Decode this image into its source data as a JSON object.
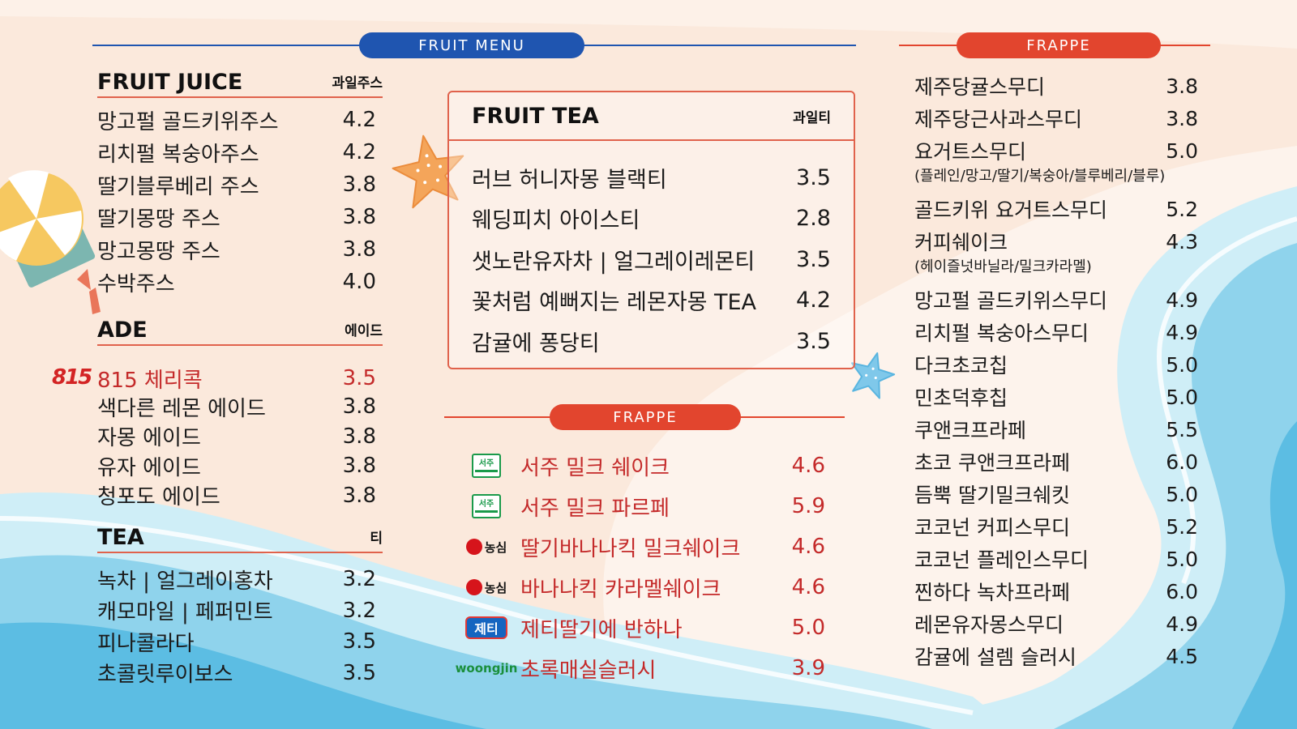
{
  "colors": {
    "blue": "#1f55b0",
    "red": "#e2452e",
    "accent_red_text": "#c42a2a",
    "sea_light": "#bfe6f3",
    "sea_mid": "#7fcbe8",
    "sea_dark": "#52b6e0",
    "sand": "#fbe9dc"
  },
  "banners": {
    "fruit_menu": "FRUIT MENU",
    "frappe_right": "FRAPPE",
    "frappe_center": "FRAPPE"
  },
  "fruit_juice": {
    "title": "FRUIT JUICE",
    "title_ko": "과일주스",
    "items": [
      {
        "name": "망고펄 골드키위주스",
        "price": "4.2"
      },
      {
        "name": "리치펄 복숭아주스",
        "price": "4.2"
      },
      {
        "name": "딸기블루베리 주스",
        "price": "3.8"
      },
      {
        "name": "딸기몽땅 주스",
        "price": "3.8"
      },
      {
        "name": "망고몽땅 주스",
        "price": "3.8"
      },
      {
        "name": "수박주스",
        "price": "4.0"
      }
    ]
  },
  "ade": {
    "title": "ADE",
    "title_ko": "에이드",
    "featured": {
      "logo": "815",
      "name": "815 체리콕",
      "price": "3.5"
    },
    "items": [
      {
        "name": "색다른 레몬 에이드",
        "price": "3.8"
      },
      {
        "name": "자몽 에이드",
        "price": "3.8"
      },
      {
        "name": "유자 에이드",
        "price": "3.8"
      },
      {
        "name": "청포도 에이드",
        "price": "3.8"
      }
    ]
  },
  "tea": {
    "title": "TEA",
    "title_ko": "티",
    "items": [
      {
        "name": "녹차 | 얼그레이홍차",
        "price": "3.2"
      },
      {
        "name": "캐모마일 | 페퍼민트",
        "price": "3.2"
      },
      {
        "name": "피나콜라다",
        "price": "3.5"
      },
      {
        "name": "초콜릿루이보스",
        "price": "3.5"
      }
    ]
  },
  "fruit_tea": {
    "title": "FRUIT TEA",
    "title_ko": "과일티",
    "items": [
      {
        "name": "러브 허니자몽 블랙티",
        "price": "3.5"
      },
      {
        "name": "웨딩피치 아이스티",
        "price": "2.8"
      },
      {
        "name": "샛노란유자차 | 얼그레이레몬티",
        "price": "3.5"
      },
      {
        "name": "꽃처럼 예뻐지는 레몬자몽 TEA",
        "price": "4.2"
      },
      {
        "name": "감귤에 퐁당티",
        "price": "3.5"
      }
    ]
  },
  "frappe_center": {
    "items": [
      {
        "logo": "seoju",
        "logo_text": "서주",
        "name": "서주 밀크 쉐이크",
        "price": "4.6"
      },
      {
        "logo": "seoju",
        "logo_text": "서주",
        "name": "서주 밀크 파르페",
        "price": "5.9"
      },
      {
        "logo": "nongshim",
        "logo_text": "농심",
        "name": "딸기바나나킥 밀크쉐이크",
        "price": "4.6"
      },
      {
        "logo": "nongshim",
        "logo_text": "농심",
        "name": "바나나킥 카라멜쉐이크",
        "price": "4.6"
      },
      {
        "logo": "jeti",
        "logo_text": "제티",
        "name": "제티딸기에 반하나",
        "price": "5.0"
      },
      {
        "logo": "woongjin",
        "logo_text": "woongjin",
        "name": "초록매실슬러시",
        "price": "3.9"
      }
    ]
  },
  "frappe_right": {
    "items": [
      {
        "name": "제주당귤스무디",
        "price": "3.8"
      },
      {
        "name": "제주당근사과스무디",
        "price": "3.8"
      },
      {
        "name": "요거트스무디",
        "price": "5.0",
        "sub": "(플레인/망고/딸기/복숭아/블루베리/블루)"
      },
      {
        "name": "골드키위 요거트스무디",
        "price": "5.2"
      },
      {
        "name": "커피쉐이크",
        "price": "4.3",
        "sub": "(헤이즐넛바닐라/밀크카라멜)"
      },
      {
        "name": "망고펄 골드키위스무디",
        "price": "4.9"
      },
      {
        "name": "리치펄 복숭아스무디",
        "price": "4.9"
      },
      {
        "name": "다크초코칩",
        "price": "5.0"
      },
      {
        "name": "민초덕후칩",
        "price": "5.0"
      },
      {
        "name": "쿠앤크프라페",
        "price": "5.5"
      },
      {
        "name": "초코 쿠앤크프라페",
        "price": "6.0"
      },
      {
        "name": "듬뿍 딸기밀크쉐킷",
        "price": "5.0"
      },
      {
        "name": "코코넌 커피스무디",
        "price": "5.2"
      },
      {
        "name": "코코넌 플레인스무디",
        "price": "5.0"
      },
      {
        "name": "찐하다 녹차프라페",
        "price": "6.0"
      },
      {
        "name": "레몬유자몽스무디",
        "price": "4.9"
      },
      {
        "name": "감귤에 설렘 슬러시",
        "price": "4.5"
      }
    ]
  }
}
